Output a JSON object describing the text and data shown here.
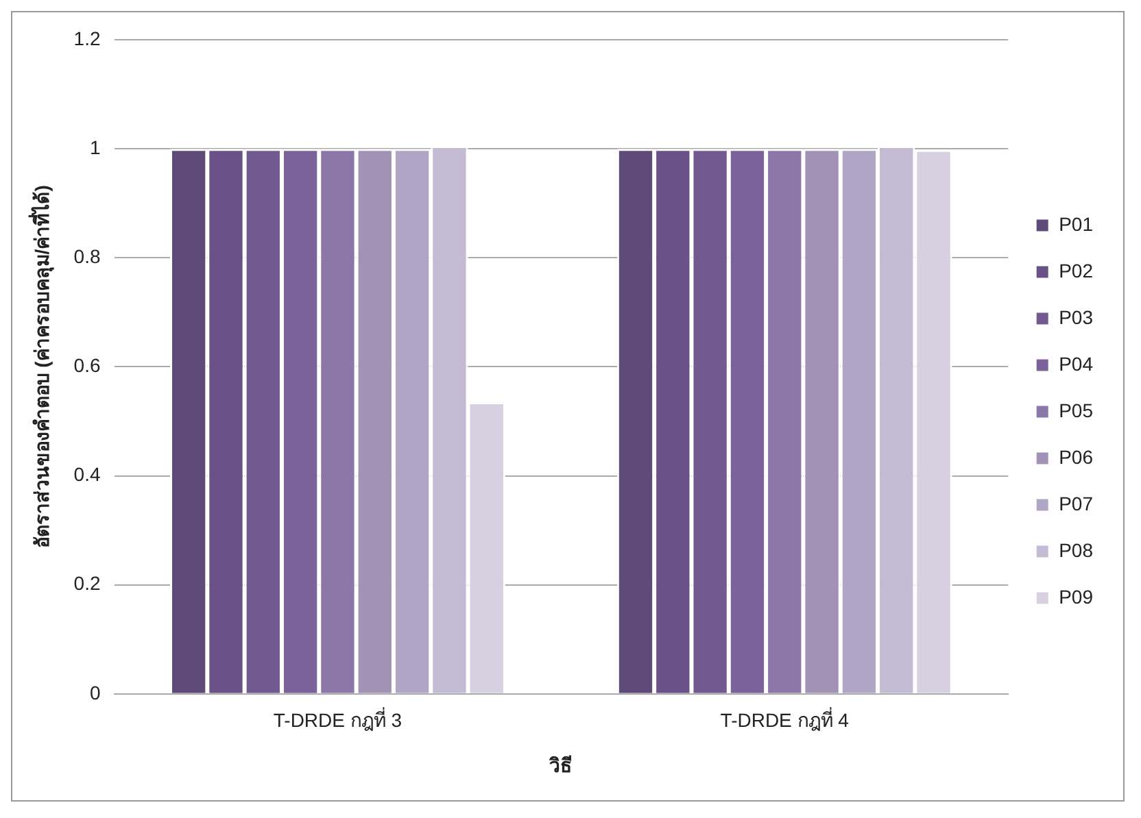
{
  "chart_data": {
    "type": "bar",
    "xlabel": "วิธี",
    "ylabel": "อัตราส่วนของคำตอบ (ค่าครอบคลุม/ค่าที่ได้)",
    "categories": [
      "T-DRDE กฎที่ 3",
      "T-DRDE กฎที่ 4"
    ],
    "series": [
      {
        "name": "P01",
        "color": "#5f4b78",
        "values": [
          1,
          1
        ]
      },
      {
        "name": "P02",
        "color": "#6a5187",
        "values": [
          1,
          1
        ]
      },
      {
        "name": "P03",
        "color": "#72598f",
        "values": [
          1,
          1
        ]
      },
      {
        "name": "P04",
        "color": "#7c629b",
        "values": [
          1,
          1
        ]
      },
      {
        "name": "P05",
        "color": "#8b77a8",
        "values": [
          1,
          1
        ]
      },
      {
        "name": "P06",
        "color": "#a192b6",
        "values": [
          1,
          1
        ]
      },
      {
        "name": "P07",
        "color": "#b1a5c5",
        "values": [
          1,
          1
        ]
      },
      {
        "name": "P08",
        "color": "#c3bad3",
        "values": [
          1.005,
          1.005
        ]
      },
      {
        "name": "P09",
        "color": "#d6d0e0",
        "values": [
          0.535,
          0.998
        ]
      }
    ],
    "ylim": [
      0,
      1.2
    ],
    "yticks": [
      0,
      0.2,
      0.4,
      0.6,
      0.8,
      1,
      1.2
    ],
    "grid": "y",
    "legend": "right"
  }
}
